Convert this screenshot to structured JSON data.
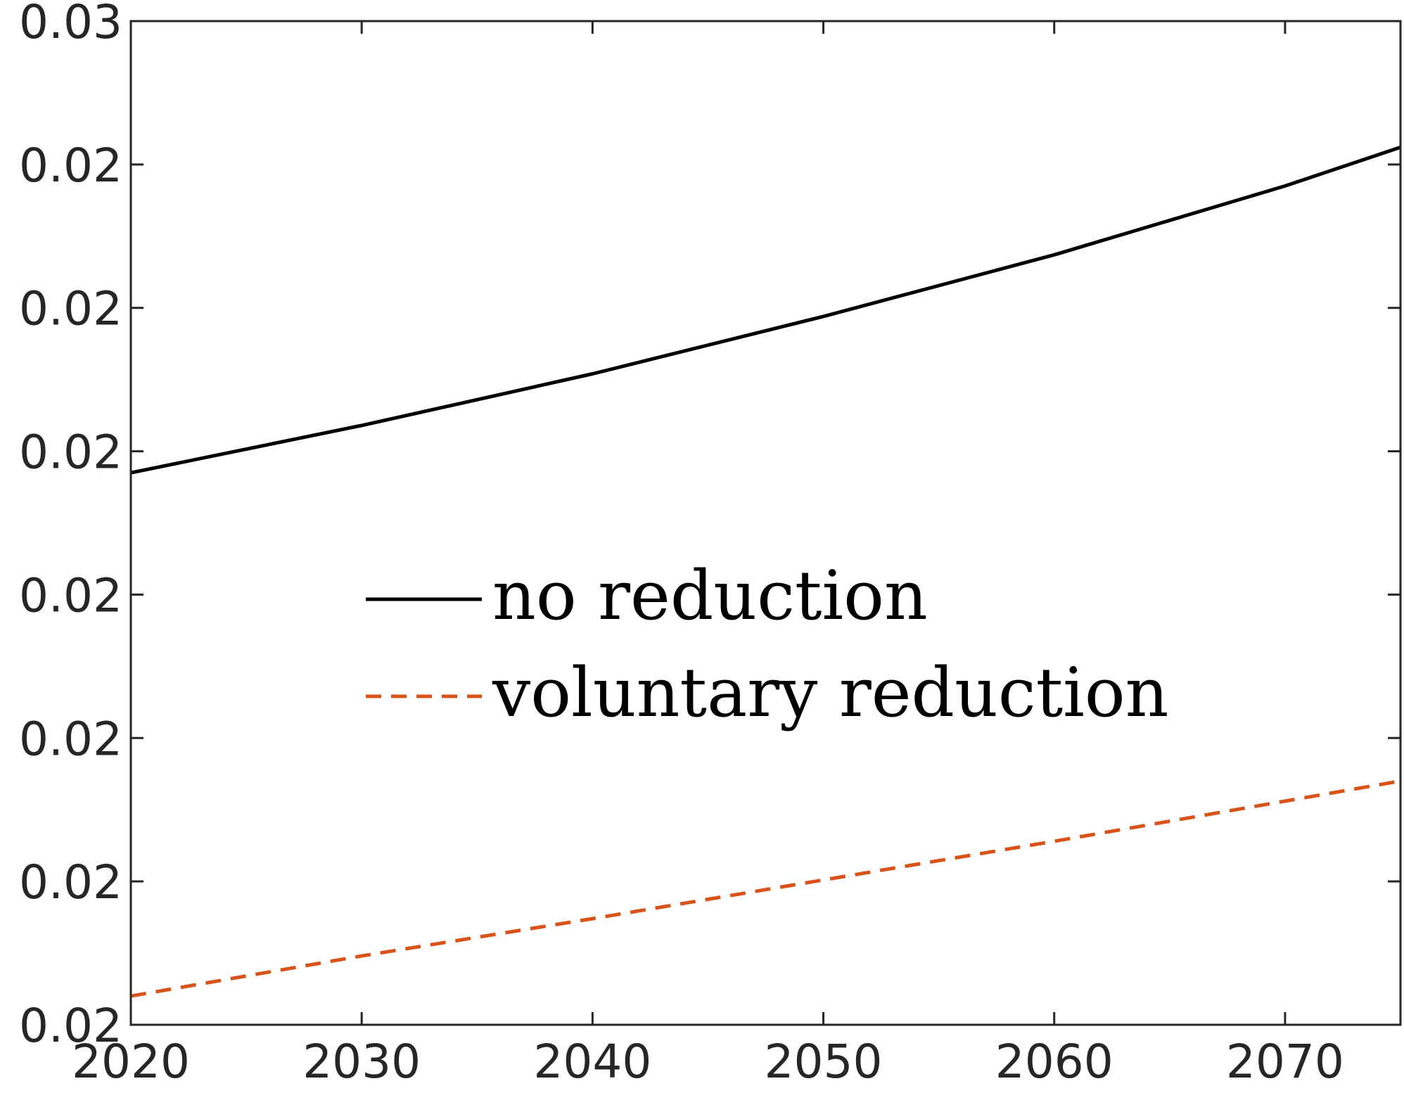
{
  "chart_data": {
    "type": "line",
    "title": "",
    "xlabel": "",
    "ylabel": "",
    "xlim": [
      2020,
      2075
    ],
    "ylim": [
      0.0195,
      0.0265
    ],
    "x_ticks": [
      2020,
      2030,
      2040,
      2050,
      2060,
      2070
    ],
    "x_tick_labels": [
      "2020",
      "2030",
      "2040",
      "2050",
      "2060",
      "2070"
    ],
    "y_ticks": [
      0.0195,
      0.0205,
      0.0215,
      0.0225,
      0.0235,
      0.0245,
      0.0255,
      0.0265
    ],
    "y_tick_labels": [
      "0.02",
      "0.02",
      "0.02",
      "0.02",
      "0.02",
      "0.02",
      "0.02",
      "0.03"
    ],
    "grid": false,
    "legend": {
      "placement": "center-left"
    },
    "series": [
      {
        "name": "no reduction",
        "color": "#000000",
        "style": "solid",
        "x": [
          2020,
          2030,
          2040,
          2050,
          2060,
          2070,
          2075
        ],
        "y": [
          0.02335,
          0.02368,
          0.02404,
          0.02444,
          0.02487,
          0.02535,
          0.02562
        ]
      },
      {
        "name": "voluntary reduction",
        "color": "#D95319",
        "style": "dashed",
        "x": [
          2020,
          2030,
          2040,
          2050,
          2060,
          2070,
          2075
        ],
        "y": [
          0.0197,
          0.01998,
          0.02024,
          0.02051,
          0.02078,
          0.02106,
          0.0212
        ]
      }
    ]
  }
}
